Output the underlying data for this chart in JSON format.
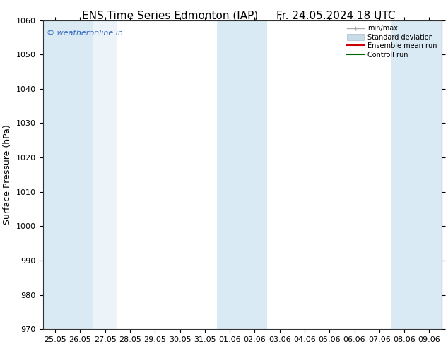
{
  "title_left": "ENS Time Series Edmonton (IAP)",
  "title_right": "Fr. 24.05.2024 18 UTC",
  "ylabel": "Surface Pressure (hPa)",
  "ylim": [
    970,
    1060
  ],
  "yticks": [
    970,
    980,
    990,
    1000,
    1010,
    1020,
    1030,
    1040,
    1050,
    1060
  ],
  "xtick_labels": [
    "25.05",
    "26.05",
    "27.05",
    "28.05",
    "29.05",
    "30.05",
    "31.05",
    "01.06",
    "02.06",
    "03.06",
    "04.06",
    "05.06",
    "06.06",
    "07.06",
    "08.06",
    "09.06"
  ],
  "background_color": "#ffffff",
  "band_color": "#daeaf5",
  "watermark_text": "© weatheronline.in",
  "watermark_color": "#3366bb",
  "legend_items": [
    {
      "label": "min/max",
      "color": "#999999"
    },
    {
      "label": "Standard deviation",
      "color": "#c8dce8"
    },
    {
      "label": "Ensemble mean run",
      "color": "#cc0000"
    },
    {
      "label": "Controll run",
      "color": "#006600"
    }
  ],
  "title_fontsize": 11,
  "tick_fontsize": 8,
  "ylabel_fontsize": 9,
  "shaded_weekend_indices": [
    0,
    1,
    7,
    8,
    14,
    15
  ],
  "shaded_extra_indices": [
    2
  ]
}
